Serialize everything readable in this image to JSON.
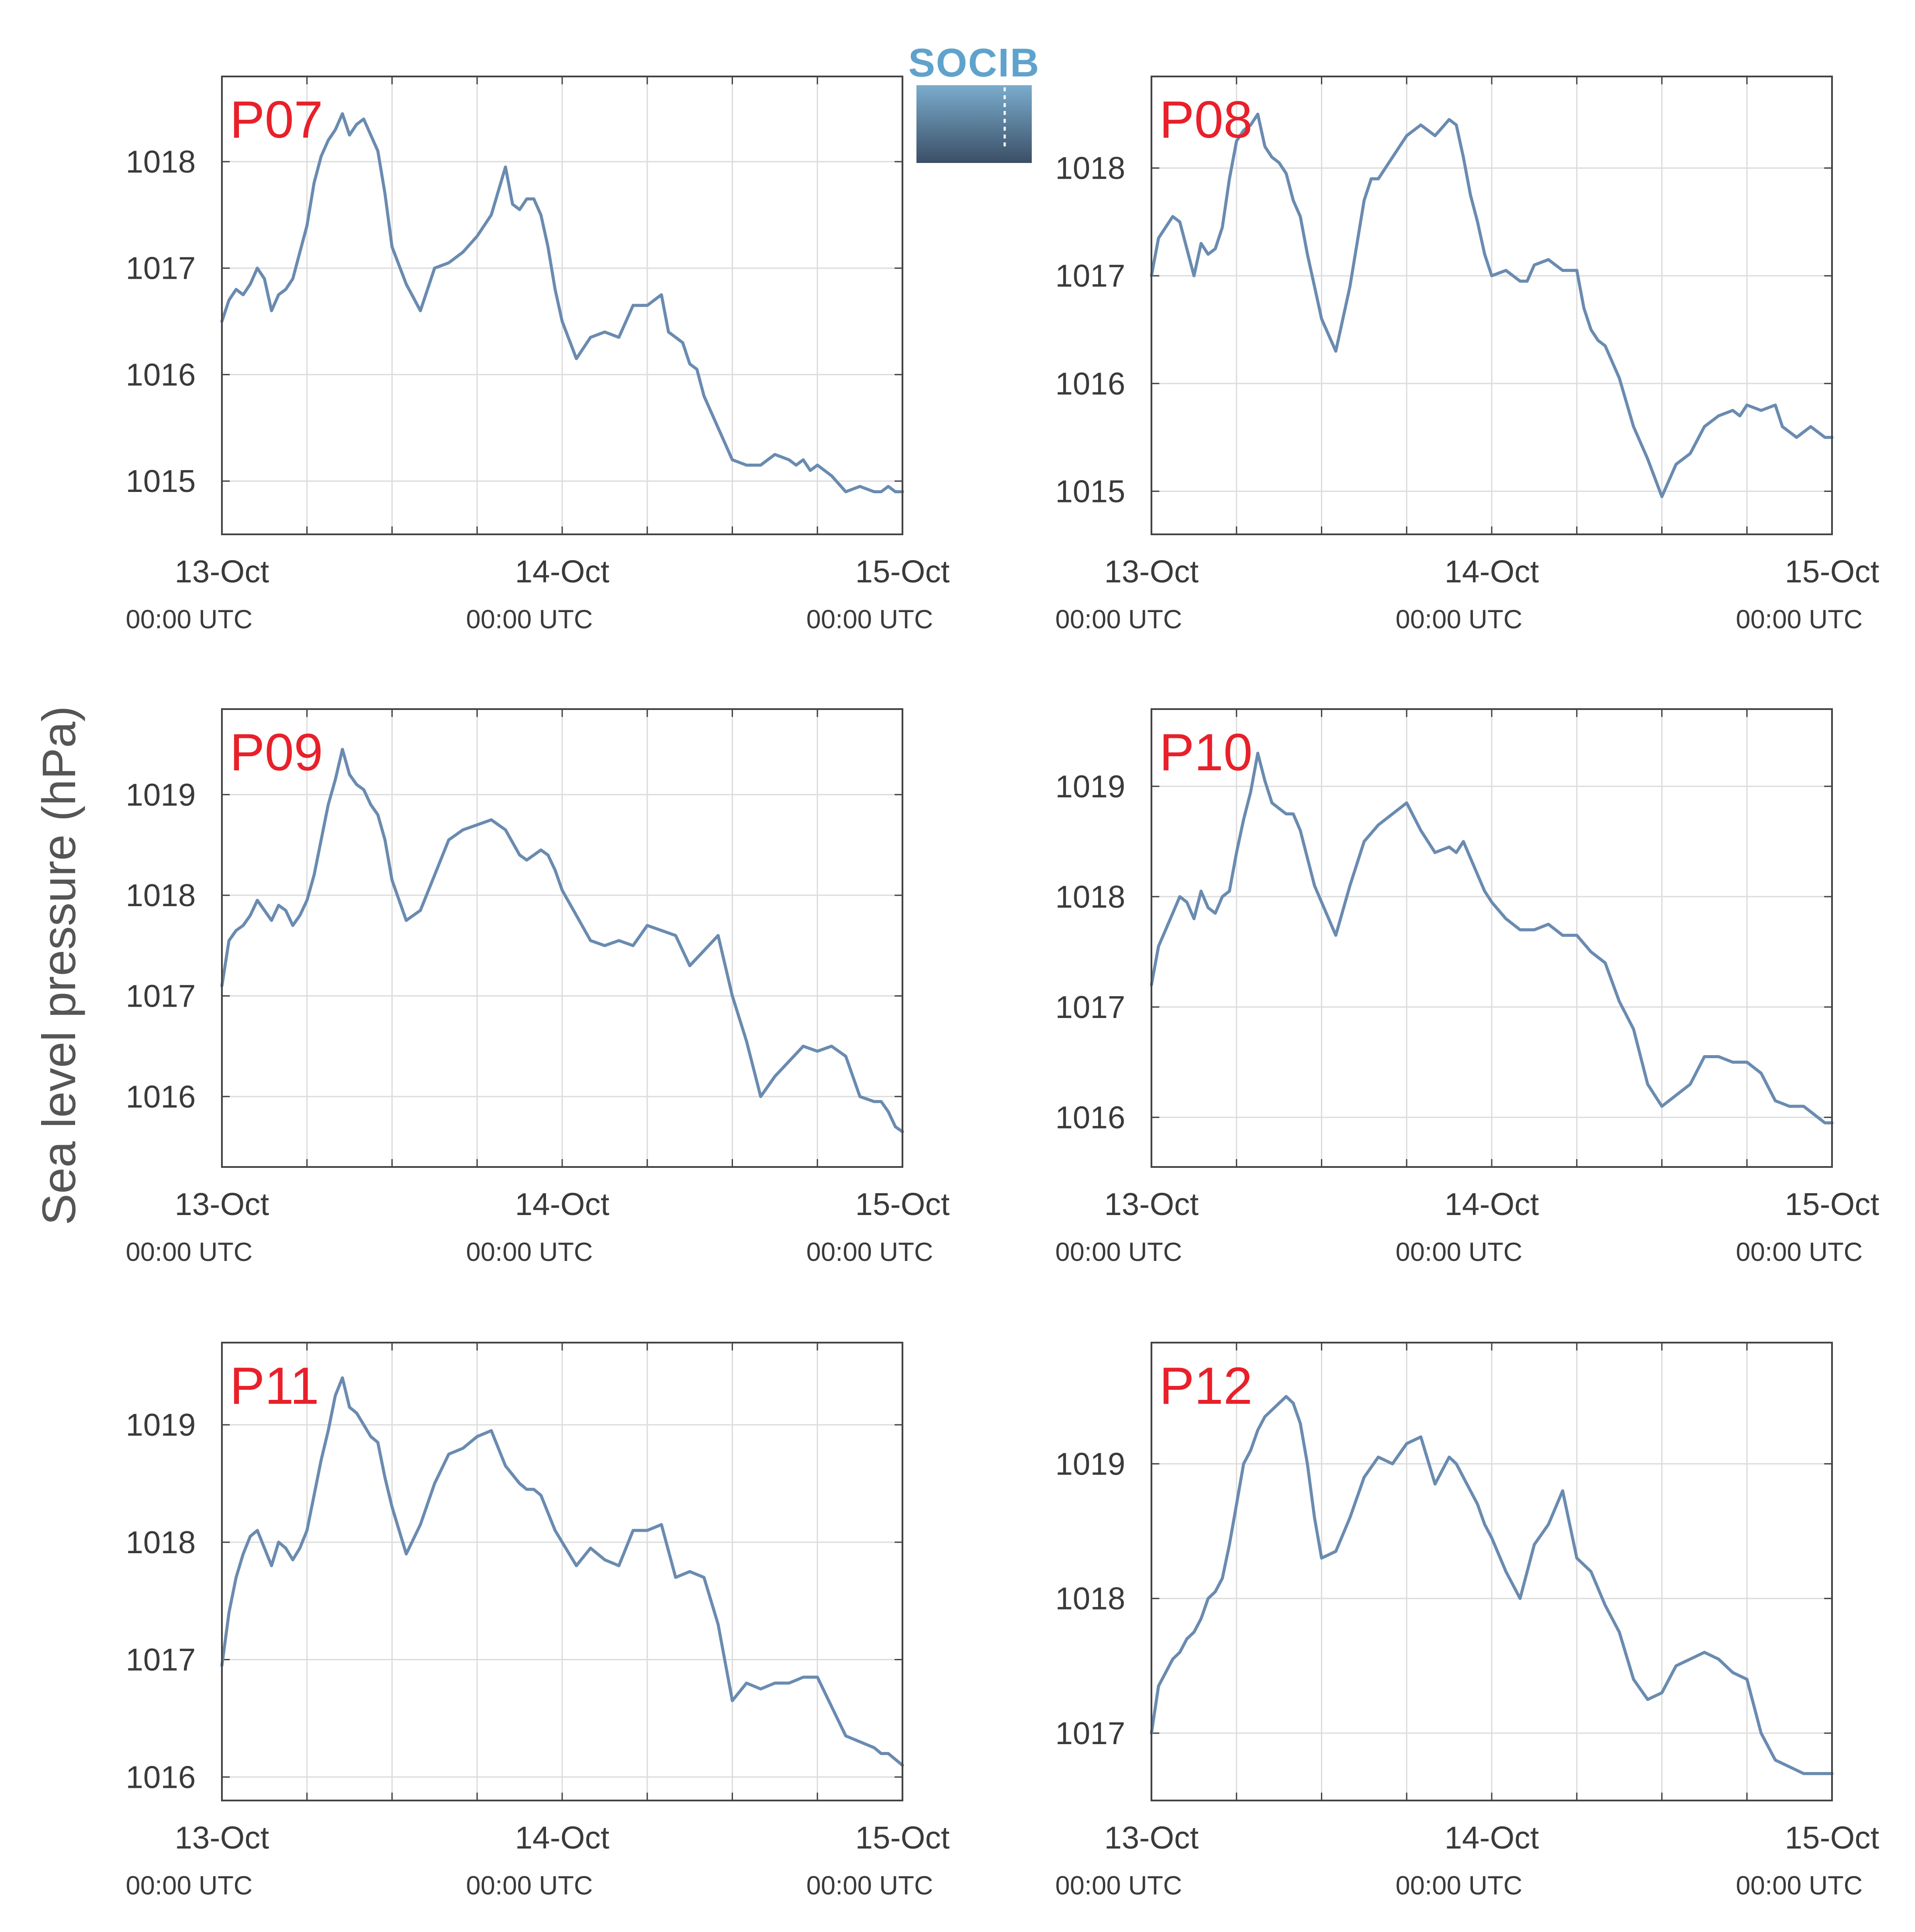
{
  "figure": {
    "ylabel": "Sea level pressure (hPa)",
    "logo_text": "SOCIB",
    "colors": {
      "line": "#6a8bb0",
      "station_label": "#e8202a",
      "grid": "#dddddd",
      "axis": "#444444",
      "logo_top": "#7aaccd",
      "logo_bottom": "#3b4f66"
    }
  },
  "chart_data": [
    {
      "type": "line",
      "station": "P07",
      "x_tick_labels": [
        "13-Oct",
        "14-Oct",
        "15-Oct"
      ],
      "x_tick_sublabels": [
        "00:00 UTC",
        "00:00 UTC",
        "00:00 UTC"
      ],
      "x_tick_hours": [
        0,
        24,
        48
      ],
      "xlim_hours": [
        0,
        48
      ],
      "ylim": [
        1014.5,
        1018.8
      ],
      "y_ticks": [
        1015,
        1016,
        1017,
        1018
      ],
      "grid": true,
      "series": [
        {
          "x_hours": [
            0,
            0.5,
            1,
            1.5,
            2,
            2.5,
            3,
            3.5,
            4,
            4.5,
            5,
            5.5,
            6,
            6.5,
            7,
            7.5,
            8,
            8.5,
            9,
            9.5,
            10,
            10.5,
            11,
            11.5,
            12,
            13,
            14,
            15,
            16,
            17,
            18,
            19,
            20,
            20.5,
            21,
            21.5,
            22,
            22.5,
            23,
            23.5,
            24,
            25,
            26,
            27,
            28,
            29,
            30,
            31,
            31.5,
            32,
            32.5,
            33,
            33.5,
            34,
            35,
            36,
            37,
            38,
            39,
            40,
            40.5,
            41,
            41.5,
            42,
            43,
            44,
            45,
            46,
            46.5,
            47,
            47.5,
            48
          ],
          "values": [
            1016.5,
            1016.7,
            1016.8,
            1016.75,
            1016.85,
            1017.0,
            1016.9,
            1016.6,
            1016.75,
            1016.8,
            1016.9,
            1017.15,
            1017.4,
            1017.8,
            1018.05,
            1018.2,
            1018.3,
            1018.45,
            1018.25,
            1018.35,
            1018.4,
            1018.25,
            1018.1,
            1017.7,
            1017.2,
            1016.85,
            1016.6,
            1017.0,
            1017.05,
            1017.15,
            1017.3,
            1017.5,
            1017.95,
            1017.6,
            1017.55,
            1017.65,
            1017.65,
            1017.5,
            1017.2,
            1016.8,
            1016.5,
            1016.15,
            1016.35,
            1016.4,
            1016.35,
            1016.65,
            1016.65,
            1016.75,
            1016.4,
            1016.35,
            1016.3,
            1016.1,
            1016.05,
            1015.8,
            1015.5,
            1015.2,
            1015.15,
            1015.15,
            1015.25,
            1015.2,
            1015.15,
            1015.2,
            1015.1,
            1015.15,
            1015.05,
            1014.9,
            1014.95,
            1014.9,
            1014.9,
            1014.95,
            1014.9,
            1014.9
          ]
        }
      ]
    },
    {
      "type": "line",
      "station": "P08",
      "x_tick_labels": [
        "13-Oct",
        "14-Oct",
        "15-Oct"
      ],
      "x_tick_sublabels": [
        "00:00 UTC",
        "00:00 UTC",
        "00:00 UTC"
      ],
      "x_tick_hours": [
        0,
        24,
        48
      ],
      "xlim_hours": [
        0,
        48
      ],
      "ylim": [
        1014.6,
        1018.85
      ],
      "y_ticks": [
        1015,
        1016,
        1017,
        1018
      ],
      "grid": true,
      "series": [
        {
          "x_hours": [
            0,
            0.5,
            1,
            1.5,
            2,
            2.5,
            3,
            3.5,
            4,
            4.5,
            5,
            5.5,
            6,
            6.5,
            7,
            7.5,
            8,
            8.5,
            9,
            9.5,
            10,
            10.5,
            11,
            11.5,
            12,
            13,
            14,
            15,
            15.5,
            16,
            16.5,
            17,
            18,
            19,
            20,
            21,
            21.5,
            22,
            22.5,
            23,
            23.5,
            24,
            25,
            26,
            26.5,
            27,
            28,
            29,
            30,
            30.5,
            31,
            31.5,
            32,
            33,
            34,
            35,
            36,
            37,
            38,
            39,
            40,
            41,
            41.5,
            42,
            43,
            44,
            44.5,
            45,
            45.5,
            46,
            46.5,
            47,
            47.5,
            48
          ],
          "values": [
            1017.0,
            1017.35,
            1017.45,
            1017.55,
            1017.5,
            1017.25,
            1017.0,
            1017.3,
            1017.2,
            1017.25,
            1017.45,
            1017.9,
            1018.25,
            1018.35,
            1018.4,
            1018.5,
            1018.2,
            1018.1,
            1018.05,
            1017.95,
            1017.7,
            1017.55,
            1017.2,
            1016.9,
            1016.6,
            1016.3,
            1016.9,
            1017.7,
            1017.9,
            1017.9,
            1018.0,
            1018.1,
            1018.3,
            1018.4,
            1018.3,
            1018.45,
            1018.4,
            1018.1,
            1017.75,
            1017.5,
            1017.2,
            1017.0,
            1017.05,
            1016.95,
            1016.95,
            1017.1,
            1017.15,
            1017.05,
            1017.05,
            1016.7,
            1016.5,
            1016.4,
            1016.35,
            1016.05,
            1015.6,
            1015.3,
            1014.95,
            1015.25,
            1015.35,
            1015.6,
            1015.7,
            1015.75,
            1015.7,
            1015.8,
            1015.75,
            1015.8,
            1015.6,
            1015.55,
            1015.5,
            1015.55,
            1015.6,
            1015.55,
            1015.5,
            1015.5
          ]
        }
      ]
    },
    {
      "type": "line",
      "station": "P09",
      "x_tick_labels": [
        "13-Oct",
        "14-Oct",
        "15-Oct"
      ],
      "x_tick_sublabels": [
        "00:00 UTC",
        "00:00 UTC",
        "00:00 UTC"
      ],
      "x_tick_hours": [
        0,
        24,
        48
      ],
      "xlim_hours": [
        0,
        48
      ],
      "ylim": [
        1015.3,
        1019.85
      ],
      "y_ticks": [
        1016,
        1017,
        1018,
        1019
      ],
      "grid": true,
      "series": [
        {
          "x_hours": [
            0,
            0.5,
            1,
            1.5,
            2,
            2.5,
            3,
            3.5,
            4,
            4.5,
            5,
            5.5,
            6,
            6.5,
            7,
            7.5,
            8,
            8.5,
            9,
            9.5,
            10,
            10.5,
            11,
            11.5,
            12,
            13,
            14,
            15,
            16,
            17,
            18,
            19,
            20,
            21,
            21.5,
            22,
            22.5,
            23,
            23.5,
            24,
            25,
            26,
            27,
            28,
            29,
            30,
            31,
            32,
            33,
            34,
            35,
            36,
            37,
            38,
            39,
            40,
            41,
            42,
            43,
            44,
            45,
            46,
            46.5,
            47,
            47.5,
            48
          ],
          "values": [
            1017.1,
            1017.55,
            1017.65,
            1017.7,
            1017.8,
            1017.95,
            1017.85,
            1017.75,
            1017.9,
            1017.85,
            1017.7,
            1017.8,
            1017.95,
            1018.2,
            1018.55,
            1018.9,
            1019.15,
            1019.45,
            1019.2,
            1019.1,
            1019.05,
            1018.9,
            1018.8,
            1018.55,
            1018.15,
            1017.75,
            1017.85,
            1018.2,
            1018.55,
            1018.65,
            1018.7,
            1018.75,
            1018.65,
            1018.4,
            1018.35,
            1018.4,
            1018.45,
            1018.4,
            1018.25,
            1018.05,
            1017.8,
            1017.55,
            1017.5,
            1017.55,
            1017.5,
            1017.7,
            1017.65,
            1017.6,
            1017.3,
            1017.45,
            1017.6,
            1017.0,
            1016.55,
            1016.0,
            1016.2,
            1016.35,
            1016.5,
            1016.45,
            1016.5,
            1016.4,
            1016.0,
            1015.95,
            1015.95,
            1015.85,
            1015.7,
            1015.65
          ]
        }
      ]
    },
    {
      "type": "line",
      "station": "P10",
      "x_tick_labels": [
        "13-Oct",
        "14-Oct",
        "15-Oct"
      ],
      "x_tick_sublabels": [
        "00:00 UTC",
        "00:00 UTC",
        "00:00 UTC"
      ],
      "x_tick_hours": [
        0,
        24,
        48
      ],
      "xlim_hours": [
        0,
        48
      ],
      "ylim": [
        1015.55,
        1019.7
      ],
      "y_ticks": [
        1016,
        1017,
        1018,
        1019
      ],
      "grid": true,
      "series": [
        {
          "x_hours": [
            0,
            0.5,
            1,
            1.5,
            2,
            2.5,
            3,
            3.5,
            4,
            4.5,
            5,
            5.5,
            6,
            6.5,
            7,
            7.5,
            8,
            8.5,
            9,
            9.5,
            10,
            10.5,
            11,
            11.5,
            12,
            13,
            14,
            15,
            16,
            17,
            18,
            19,
            20,
            21,
            21.5,
            22,
            22.5,
            23,
            23.5,
            24,
            25,
            26,
            27,
            28,
            29,
            30,
            31,
            32,
            33,
            34,
            35,
            36,
            37,
            38,
            39,
            40,
            41,
            42,
            43,
            44,
            45,
            46,
            46.5,
            47,
            47.5,
            48
          ],
          "values": [
            1017.2,
            1017.55,
            1017.7,
            1017.85,
            1018.0,
            1017.95,
            1017.8,
            1018.05,
            1017.9,
            1017.85,
            1018.0,
            1018.05,
            1018.4,
            1018.7,
            1018.95,
            1019.3,
            1019.05,
            1018.85,
            1018.8,
            1018.75,
            1018.75,
            1018.6,
            1018.35,
            1018.1,
            1017.95,
            1017.65,
            1018.1,
            1018.5,
            1018.65,
            1018.75,
            1018.85,
            1018.6,
            1018.4,
            1018.45,
            1018.4,
            1018.5,
            1018.35,
            1018.2,
            1018.05,
            1017.95,
            1017.8,
            1017.7,
            1017.7,
            1017.75,
            1017.65,
            1017.65,
            1017.5,
            1017.4,
            1017.05,
            1016.8,
            1016.3,
            1016.1,
            1016.2,
            1016.3,
            1016.55,
            1016.55,
            1016.5,
            1016.5,
            1016.4,
            1016.15,
            1016.1,
            1016.1,
            1016.05,
            1016.0,
            1015.95,
            1015.95
          ]
        }
      ]
    },
    {
      "type": "line",
      "station": "P11",
      "x_tick_labels": [
        "13-Oct",
        "14-Oct",
        "15-Oct"
      ],
      "x_tick_sublabels": [
        "00:00 UTC",
        "00:00 UTC",
        "00:00 UTC"
      ],
      "x_tick_hours": [
        0,
        24,
        48
      ],
      "xlim_hours": [
        0,
        48
      ],
      "ylim": [
        1015.8,
        1019.7
      ],
      "y_ticks": [
        1016,
        1017,
        1018,
        1019
      ],
      "grid": true,
      "series": [
        {
          "x_hours": [
            0,
            0.5,
            1,
            1.5,
            2,
            2.5,
            3,
            3.5,
            4,
            4.5,
            5,
            5.5,
            6,
            6.5,
            7,
            7.5,
            8,
            8.5,
            9,
            9.5,
            10,
            10.5,
            11,
            11.5,
            12,
            13,
            14,
            15,
            16,
            17,
            18,
            19,
            20,
            21,
            21.5,
            22,
            22.5,
            23,
            23.5,
            24,
            25,
            26,
            27,
            28,
            29,
            30,
            31,
            32,
            33,
            34,
            35,
            36,
            37,
            38,
            39,
            40,
            41,
            42,
            43,
            44,
            45,
            46,
            46.5,
            47,
            47.5,
            48
          ],
          "values": [
            1016.95,
            1017.4,
            1017.7,
            1017.9,
            1018.05,
            1018.1,
            1017.95,
            1017.8,
            1018.0,
            1017.95,
            1017.85,
            1017.95,
            1018.1,
            1018.4,
            1018.7,
            1018.95,
            1019.25,
            1019.4,
            1019.15,
            1019.1,
            1019.0,
            1018.9,
            1018.85,
            1018.55,
            1018.3,
            1017.9,
            1018.15,
            1018.5,
            1018.75,
            1018.8,
            1018.9,
            1018.95,
            1018.65,
            1018.5,
            1018.45,
            1018.45,
            1018.4,
            1018.25,
            1018.1,
            1018.0,
            1017.8,
            1017.95,
            1017.85,
            1017.8,
            1018.1,
            1018.1,
            1018.15,
            1017.7,
            1017.75,
            1017.7,
            1017.3,
            1016.65,
            1016.8,
            1016.75,
            1016.8,
            1016.8,
            1016.85,
            1016.85,
            1016.6,
            1016.35,
            1016.3,
            1016.25,
            1016.2,
            1016.2,
            1016.15,
            1016.1
          ]
        }
      ]
    },
    {
      "type": "line",
      "station": "P12",
      "x_tick_labels": [
        "13-Oct",
        "14-Oct",
        "15-Oct"
      ],
      "x_tick_sublabels": [
        "00:00 UTC",
        "00:00 UTC",
        "00:00 UTC"
      ],
      "x_tick_hours": [
        0,
        24,
        48
      ],
      "xlim_hours": [
        0,
        48
      ],
      "ylim": [
        1016.5,
        1019.9
      ],
      "y_ticks": [
        1017,
        1018,
        1019
      ],
      "grid": true,
      "series": [
        {
          "x_hours": [
            0,
            0.5,
            1,
            1.5,
            2,
            2.5,
            3,
            3.5,
            4,
            4.5,
            5,
            5.5,
            6,
            6.5,
            7,
            7.5,
            8,
            8.5,
            9,
            9.5,
            10,
            10.5,
            11,
            11.5,
            12,
            13,
            14,
            15,
            16,
            17,
            18,
            19,
            20,
            21,
            21.5,
            22,
            22.5,
            23,
            23.5,
            24,
            25,
            26,
            27,
            28,
            29,
            30,
            31,
            32,
            33,
            34,
            35,
            36,
            37,
            38,
            39,
            40,
            41,
            42,
            43,
            44,
            45,
            46,
            46.5,
            47,
            47.5,
            48
          ],
          "values": [
            1017.0,
            1017.35,
            1017.45,
            1017.55,
            1017.6,
            1017.7,
            1017.75,
            1017.85,
            1018.0,
            1018.05,
            1018.15,
            1018.4,
            1018.7,
            1019.0,
            1019.1,
            1019.25,
            1019.35,
            1019.4,
            1019.45,
            1019.5,
            1019.45,
            1019.3,
            1019.0,
            1018.6,
            1018.3,
            1018.35,
            1018.6,
            1018.9,
            1019.05,
            1019.0,
            1019.15,
            1019.2,
            1018.85,
            1019.05,
            1019.0,
            1018.9,
            1018.8,
            1018.7,
            1018.55,
            1018.45,
            1018.2,
            1018.0,
            1018.4,
            1018.55,
            1018.8,
            1018.3,
            1018.2,
            1017.95,
            1017.75,
            1017.4,
            1017.25,
            1017.3,
            1017.5,
            1017.55,
            1017.6,
            1017.55,
            1017.45,
            1017.4,
            1017.0,
            1016.8,
            1016.75,
            1016.7,
            1016.7,
            1016.7,
            1016.7,
            1016.7
          ]
        }
      ]
    }
  ]
}
